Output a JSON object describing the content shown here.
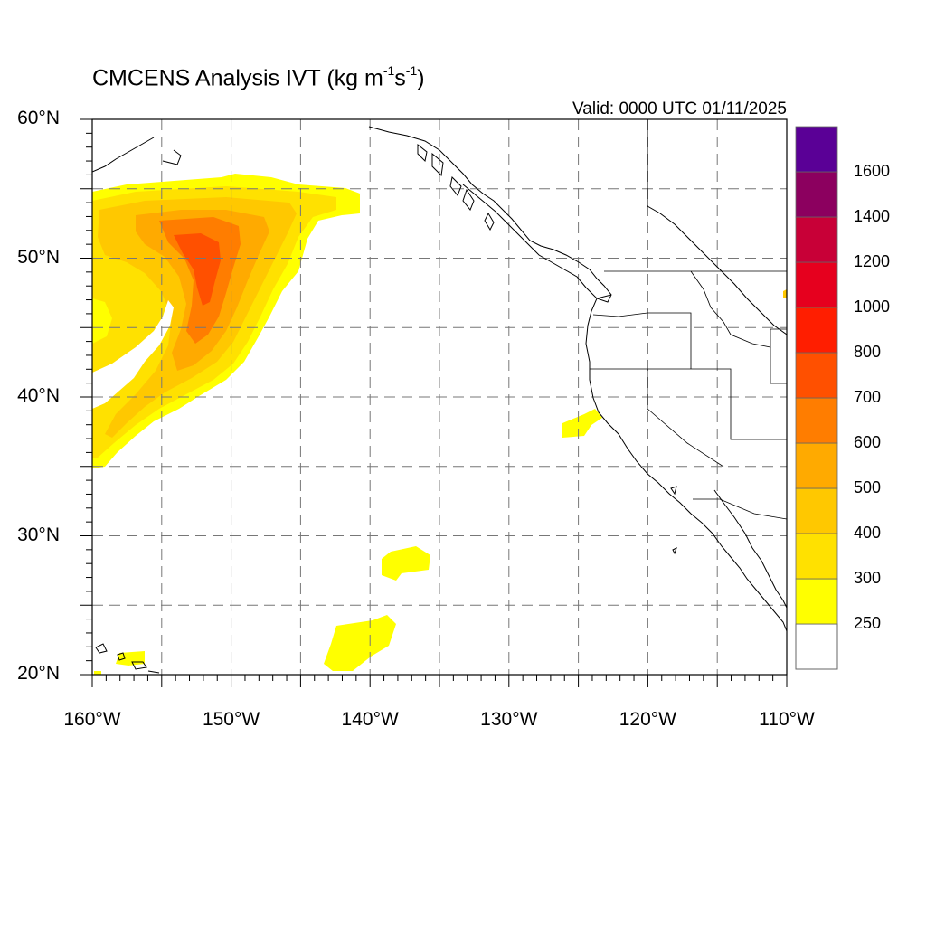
{
  "title": {
    "main": "CMCENS Analysis IVT (kg m",
    "sup1": "-1",
    "mid": "s",
    "sup2": "-1",
    "end": ")"
  },
  "valid_text": "Valid: 0000 UTC 01/11/2025",
  "axes": {
    "lon_range": [
      -160,
      -110
    ],
    "lat_range": [
      20,
      60
    ],
    "lon_ticks": [
      {
        "value": -160,
        "label": "160°W"
      },
      {
        "value": -150,
        "label": "150°W"
      },
      {
        "value": -140,
        "label": "140°W"
      },
      {
        "value": -130,
        "label": "130°W"
      },
      {
        "value": -120,
        "label": "120°W"
      },
      {
        "value": -110,
        "label": "110°W"
      }
    ],
    "lat_ticks": [
      {
        "value": 60,
        "label": "60°N"
      },
      {
        "value": 50,
        "label": "50°N"
      },
      {
        "value": 40,
        "label": "40°N"
      },
      {
        "value": 30,
        "label": "30°N"
      },
      {
        "value": 20,
        "label": "20°N"
      }
    ],
    "grid_lons": [
      -155,
      -150,
      -145,
      -140,
      -135,
      -130,
      -125,
      -120,
      -115
    ],
    "grid_lats": [
      25,
      30,
      35,
      40,
      45,
      50,
      55
    ],
    "grid": "dashed"
  },
  "colorbar": {
    "levels": [
      {
        "label": "250",
        "color": "#ffff00"
      },
      {
        "label": "300",
        "color": "#ffe100"
      },
      {
        "label": "400",
        "color": "#ffc800"
      },
      {
        "label": "500",
        "color": "#ffaa00"
      },
      {
        "label": "600",
        "color": "#ff7d00"
      },
      {
        "label": "700",
        "color": "#ff5000"
      },
      {
        "label": "800",
        "color": "#ff1e00"
      },
      {
        "label": "1000",
        "color": "#e6001e"
      },
      {
        "label": "1200",
        "color": "#c80037"
      },
      {
        "label": "1400",
        "color": "#8c005f"
      },
      {
        "label": "1600",
        "color": "#5a0096"
      }
    ],
    "below_color": "#ffffff"
  },
  "ivt_features": [
    {
      "name": "main atmospheric river",
      "category": "300-600",
      "peak": "700-800"
    },
    {
      "name": "california coast blob",
      "category": "250"
    },
    {
      "name": "subtropical blob north",
      "category": "250"
    },
    {
      "name": "subtropical blob south",
      "category": "250"
    },
    {
      "name": "hawaii blob",
      "category": "250"
    }
  ]
}
